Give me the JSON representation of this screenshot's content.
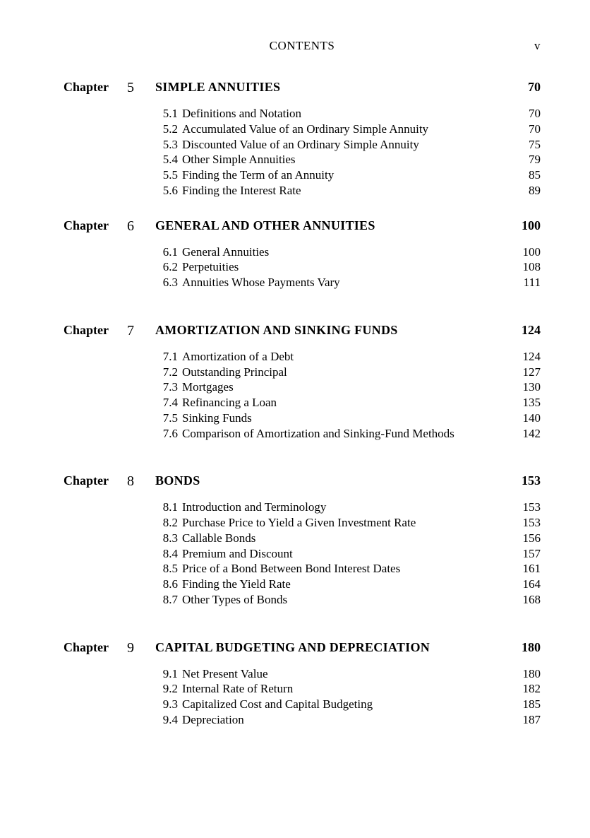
{
  "header": {
    "title": "CONTENTS",
    "page_marker": "v"
  },
  "chapter_label": "Chapter",
  "chapters": [
    {
      "num": "5",
      "title": "SIMPLE ANNUITIES",
      "page": "70",
      "sections": [
        {
          "num": "5.1",
          "title": "Definitions and Notation",
          "page": "70"
        },
        {
          "num": "5.2",
          "title": "Accumulated Value of an Ordinary Simple Annuity",
          "page": "70"
        },
        {
          "num": "5.3",
          "title": "Discounted Value of an Ordinary Simple Annuity",
          "page": "75"
        },
        {
          "num": "5.4",
          "title": "Other Simple Annuities",
          "page": "79"
        },
        {
          "num": "5.5",
          "title": "Finding the Term of an Annuity",
          "page": "85"
        },
        {
          "num": "5.6",
          "title": "Finding the Interest Rate",
          "page": "89"
        }
      ],
      "gap_after": false
    },
    {
      "num": "6",
      "title": "GENERAL AND OTHER ANNUITIES",
      "page": "100",
      "sections": [
        {
          "num": "6.1",
          "title": "General Annuities",
          "page": "100"
        },
        {
          "num": "6.2",
          "title": "Perpetuities",
          "page": "108"
        },
        {
          "num": "6.3",
          "title": "Annuities Whose Payments Vary",
          "page": "111"
        }
      ],
      "gap_after": true
    },
    {
      "num": "7",
      "title": "AMORTIZATION AND SINKING FUNDS",
      "page": "124",
      "sections": [
        {
          "num": "7.1",
          "title": "Amortization of a Debt",
          "page": "124"
        },
        {
          "num": "7.2",
          "title": "Outstanding Principal",
          "page": "127"
        },
        {
          "num": "7.3",
          "title": "Mortgages",
          "page": "130"
        },
        {
          "num": "7.4",
          "title": "Refinancing a Loan",
          "page": "135"
        },
        {
          "num": "7.5",
          "title": "Sinking Funds",
          "page": "140"
        },
        {
          "num": "7.6",
          "title": "Comparison of Amortization and Sinking-Fund Methods",
          "page": "142"
        }
      ],
      "gap_after": true
    },
    {
      "num": "8",
      "title": "BONDS",
      "page": "153",
      "sections": [
        {
          "num": "8.1",
          "title": "Introduction and Terminology",
          "page": "153"
        },
        {
          "num": "8.2",
          "title": "Purchase Price to Yield a Given Investment Rate",
          "page": "153"
        },
        {
          "num": "8.3",
          "title": "Callable Bonds",
          "page": "156"
        },
        {
          "num": "8.4",
          "title": "Premium and Discount",
          "page": "157"
        },
        {
          "num": "8.5",
          "title": "Price of a Bond Between Bond Interest Dates",
          "page": "161"
        },
        {
          "num": "8.6",
          "title": "Finding the Yield Rate",
          "page": "164"
        },
        {
          "num": "8.7",
          "title": "Other Types of Bonds",
          "page": "168"
        }
      ],
      "gap_after": true
    },
    {
      "num": "9",
      "title": "CAPITAL BUDGETING AND DEPRECIATION",
      "page": "180",
      "sections": [
        {
          "num": "9.1",
          "title": "Net Present Value",
          "page": "180"
        },
        {
          "num": "9.2",
          "title": "Internal Rate of Return",
          "page": "182"
        },
        {
          "num": "9.3",
          "title": "Capitalized Cost and Capital Budgeting",
          "page": "185"
        },
        {
          "num": "9.4",
          "title": "Depreciation",
          "page": "187"
        }
      ],
      "gap_after": false
    }
  ]
}
